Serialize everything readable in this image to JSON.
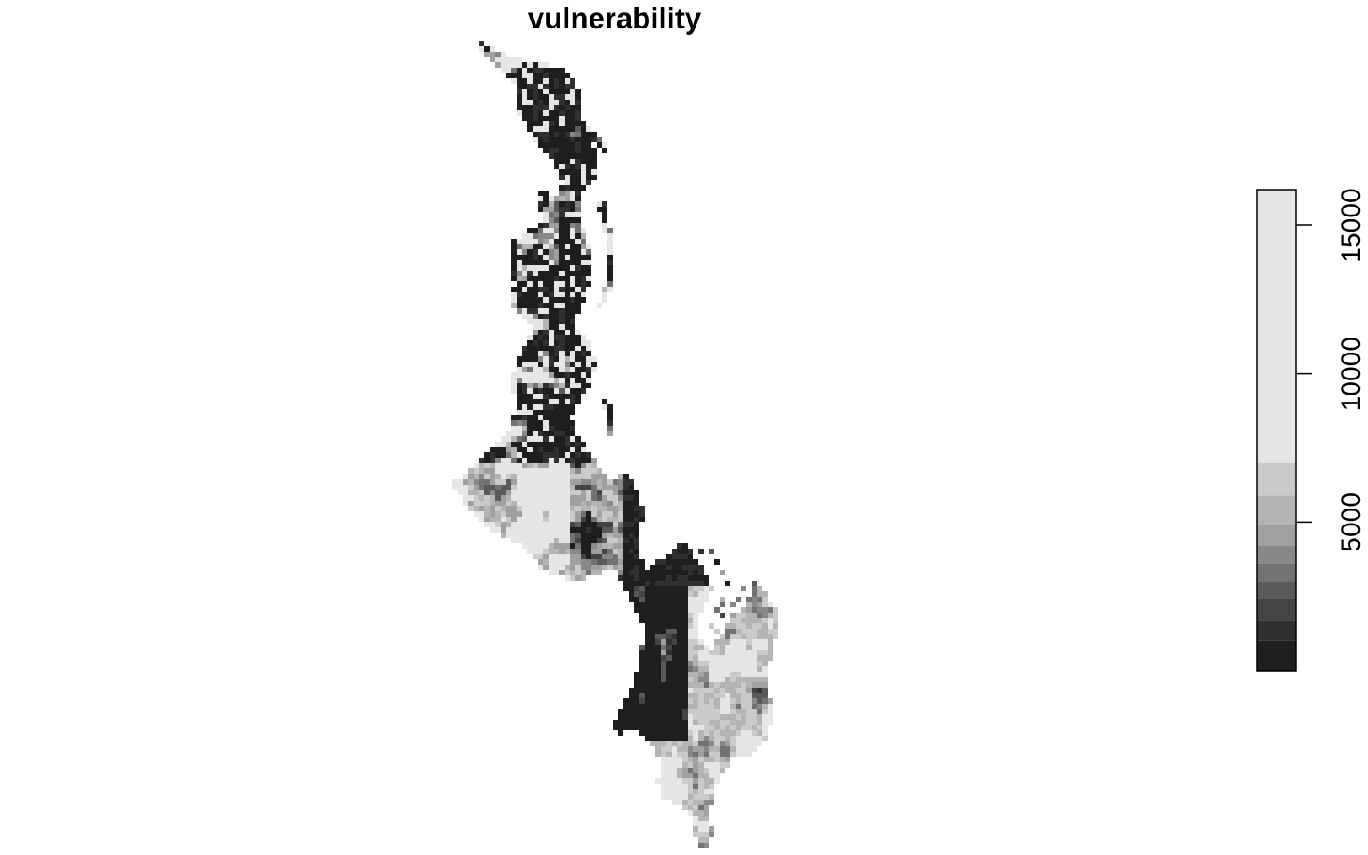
{
  "title": "vulnerability",
  "legend": {
    "min": 0,
    "max": 16200,
    "ticks": [
      {
        "value": 5000,
        "label": "5000"
      },
      {
        "value": 10000,
        "label": "10000"
      },
      {
        "value": 15000,
        "label": "15000"
      }
    ],
    "bands": [
      {
        "from": 0,
        "to": 1000,
        "color": "#1e1e1e"
      },
      {
        "from": 1000,
        "to": 1700,
        "color": "#303030"
      },
      {
        "from": 1700,
        "to": 2400,
        "color": "#444444"
      },
      {
        "from": 2400,
        "to": 3000,
        "color": "#5a5a5a"
      },
      {
        "from": 3000,
        "to": 3600,
        "color": "#727272"
      },
      {
        "from": 3600,
        "to": 4200,
        "color": "#888888"
      },
      {
        "from": 4200,
        "to": 4900,
        "color": "#a0a0a0"
      },
      {
        "from": 4900,
        "to": 5900,
        "color": "#b4b4b4"
      },
      {
        "from": 5900,
        "to": 7000,
        "color": "#cacaca"
      },
      {
        "from": 7000,
        "to": 16200,
        "color": "#e6e6e6"
      }
    ]
  },
  "chart_data": {
    "type": "heatmap",
    "title": "vulnerability",
    "legend_position": "right",
    "colorbar_range": [
      0,
      16200
    ],
    "colorbar_ticks": [
      5000,
      10000,
      15000
    ]
  }
}
